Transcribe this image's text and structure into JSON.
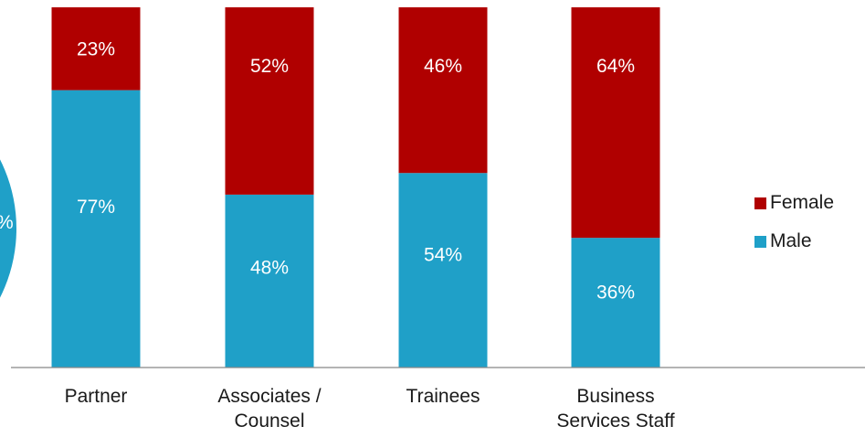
{
  "chart_data": {
    "type": "bar",
    "stacked": true,
    "percent_stacked": true,
    "categories": [
      "Partner",
      "Associates / Counsel",
      "Trainees",
      "Business Services Staff"
    ],
    "series": [
      {
        "name": "Male",
        "color": "#1fa0c8",
        "values": [
          77,
          48,
          54,
          36
        ],
        "labels": [
          "77%",
          "48%",
          "54%",
          "36%"
        ]
      },
      {
        "name": "Female",
        "color": "#b00000",
        "values": [
          23,
          52,
          46,
          64
        ],
        "labels": [
          "23%",
          "52%",
          "46%",
          "64%"
        ]
      }
    ],
    "ylim": [
      0,
      100
    ],
    "legend_position": "right",
    "legend": [
      "Female",
      "Male"
    ],
    "grid": false,
    "partial_element": {
      "text": "%",
      "color": "#1fa0c8"
    }
  }
}
